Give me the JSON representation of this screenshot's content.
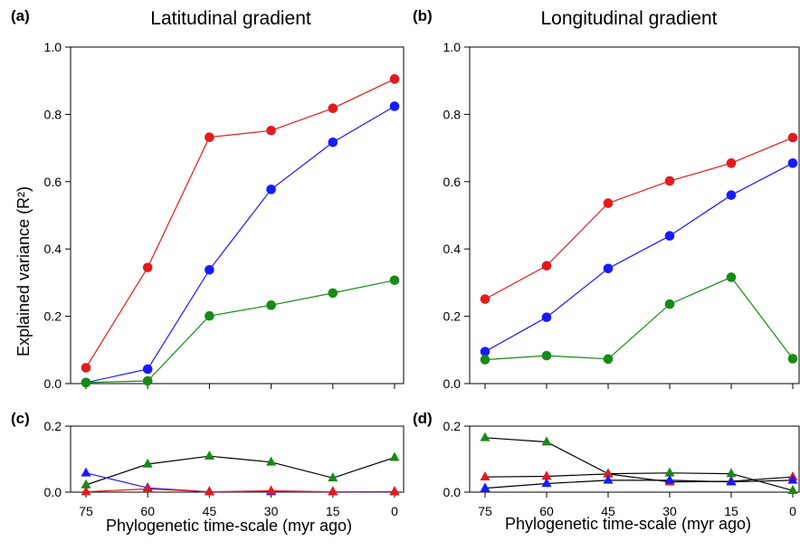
{
  "figure": {
    "ylabel": "Explained variance (R²)",
    "xlabel_left": "Phylogenetic time-scale (myr ago)",
    "xlabel_right": "Phylogenetic time-scale (myr ago)"
  },
  "chart_data": [
    {
      "panel": "(a)",
      "type": "line",
      "title": "Latitudinal gradient",
      "categories": [
        "75",
        "60",
        "45",
        "30",
        "15",
        "0"
      ],
      "ylim": [
        0,
        1.0
      ],
      "yticks": [
        "0.0",
        "0.2",
        "0.4",
        "0.6",
        "0.8",
        "1.0"
      ],
      "marker": "circle",
      "series": [
        {
          "color": "#e41a1c",
          "line_color": "#e41a1c",
          "values": [
            0.047,
            0.345,
            0.732,
            0.752,
            0.818,
            0.905
          ]
        },
        {
          "color": "#1a1aff",
          "line_color": "#1a1aff",
          "values": [
            0.003,
            0.043,
            0.338,
            0.577,
            0.717,
            0.824
          ]
        },
        {
          "color": "#178a17",
          "line_color": "#178a17",
          "values": [
            0.003,
            0.008,
            0.201,
            0.233,
            0.269,
            0.307
          ]
        }
      ]
    },
    {
      "panel": "(b)",
      "type": "line",
      "title": "Longitudinal gradient",
      "categories": [
        "75",
        "60",
        "45",
        "30",
        "15",
        "0"
      ],
      "ylim": [
        0,
        1.0
      ],
      "yticks": [
        "0.0",
        "0.2",
        "0.4",
        "0.6",
        "0.8",
        "1.0"
      ],
      "marker": "circle",
      "series": [
        {
          "color": "#e41a1c",
          "line_color": "#e41a1c",
          "values": [
            0.251,
            0.35,
            0.536,
            0.602,
            0.655,
            0.731
          ]
        },
        {
          "color": "#1a1aff",
          "line_color": "#1a1aff",
          "values": [
            0.095,
            0.197,
            0.342,
            0.439,
            0.56,
            0.655
          ]
        },
        {
          "color": "#178a17",
          "line_color": "#178a17",
          "values": [
            0.071,
            0.083,
            0.073,
            0.236,
            0.316,
            0.074
          ]
        }
      ]
    },
    {
      "panel": "(c)",
      "type": "line",
      "categories": [
        "75",
        "60",
        "45",
        "30",
        "15",
        "0"
      ],
      "ylim": [
        0,
        0.2
      ],
      "yticks": [
        "0.0",
        "0.2"
      ],
      "marker": "triangle",
      "series": [
        {
          "color": "#178a17",
          "line_color": "#000000",
          "values": [
            0.022,
            0.085,
            0.109,
            0.091,
            0.043,
            0.105
          ]
        },
        {
          "color": "#1a1aff",
          "line_color": "#1a1aff",
          "values": [
            0.058,
            0.013,
            0.001,
            0.001,
            0.001,
            0.001
          ]
        },
        {
          "color": "#e41a1c",
          "line_color": "#e41a1c",
          "values": [
            0.001,
            0.01,
            0.001,
            0.004,
            0.001,
            0.002
          ]
        }
      ]
    },
    {
      "panel": "(d)",
      "type": "line",
      "categories": [
        "75",
        "60",
        "45",
        "30",
        "15",
        "0"
      ],
      "ylim": [
        0,
        0.2
      ],
      "yticks": [
        "0.0",
        "0.2"
      ],
      "marker": "triangle",
      "series": [
        {
          "color": "#178a17",
          "line_color": "#000000",
          "values": [
            0.165,
            0.152,
            0.056,
            0.058,
            0.056,
            0.005
          ]
        },
        {
          "color": "#e41a1c",
          "line_color": "#000000",
          "values": [
            0.046,
            0.048,
            0.055,
            0.031,
            0.033,
            0.046
          ]
        },
        {
          "color": "#1a1aff",
          "line_color": "#000000",
          "values": [
            0.012,
            0.026,
            0.036,
            0.036,
            0.031,
            0.036
          ]
        }
      ]
    }
  ]
}
